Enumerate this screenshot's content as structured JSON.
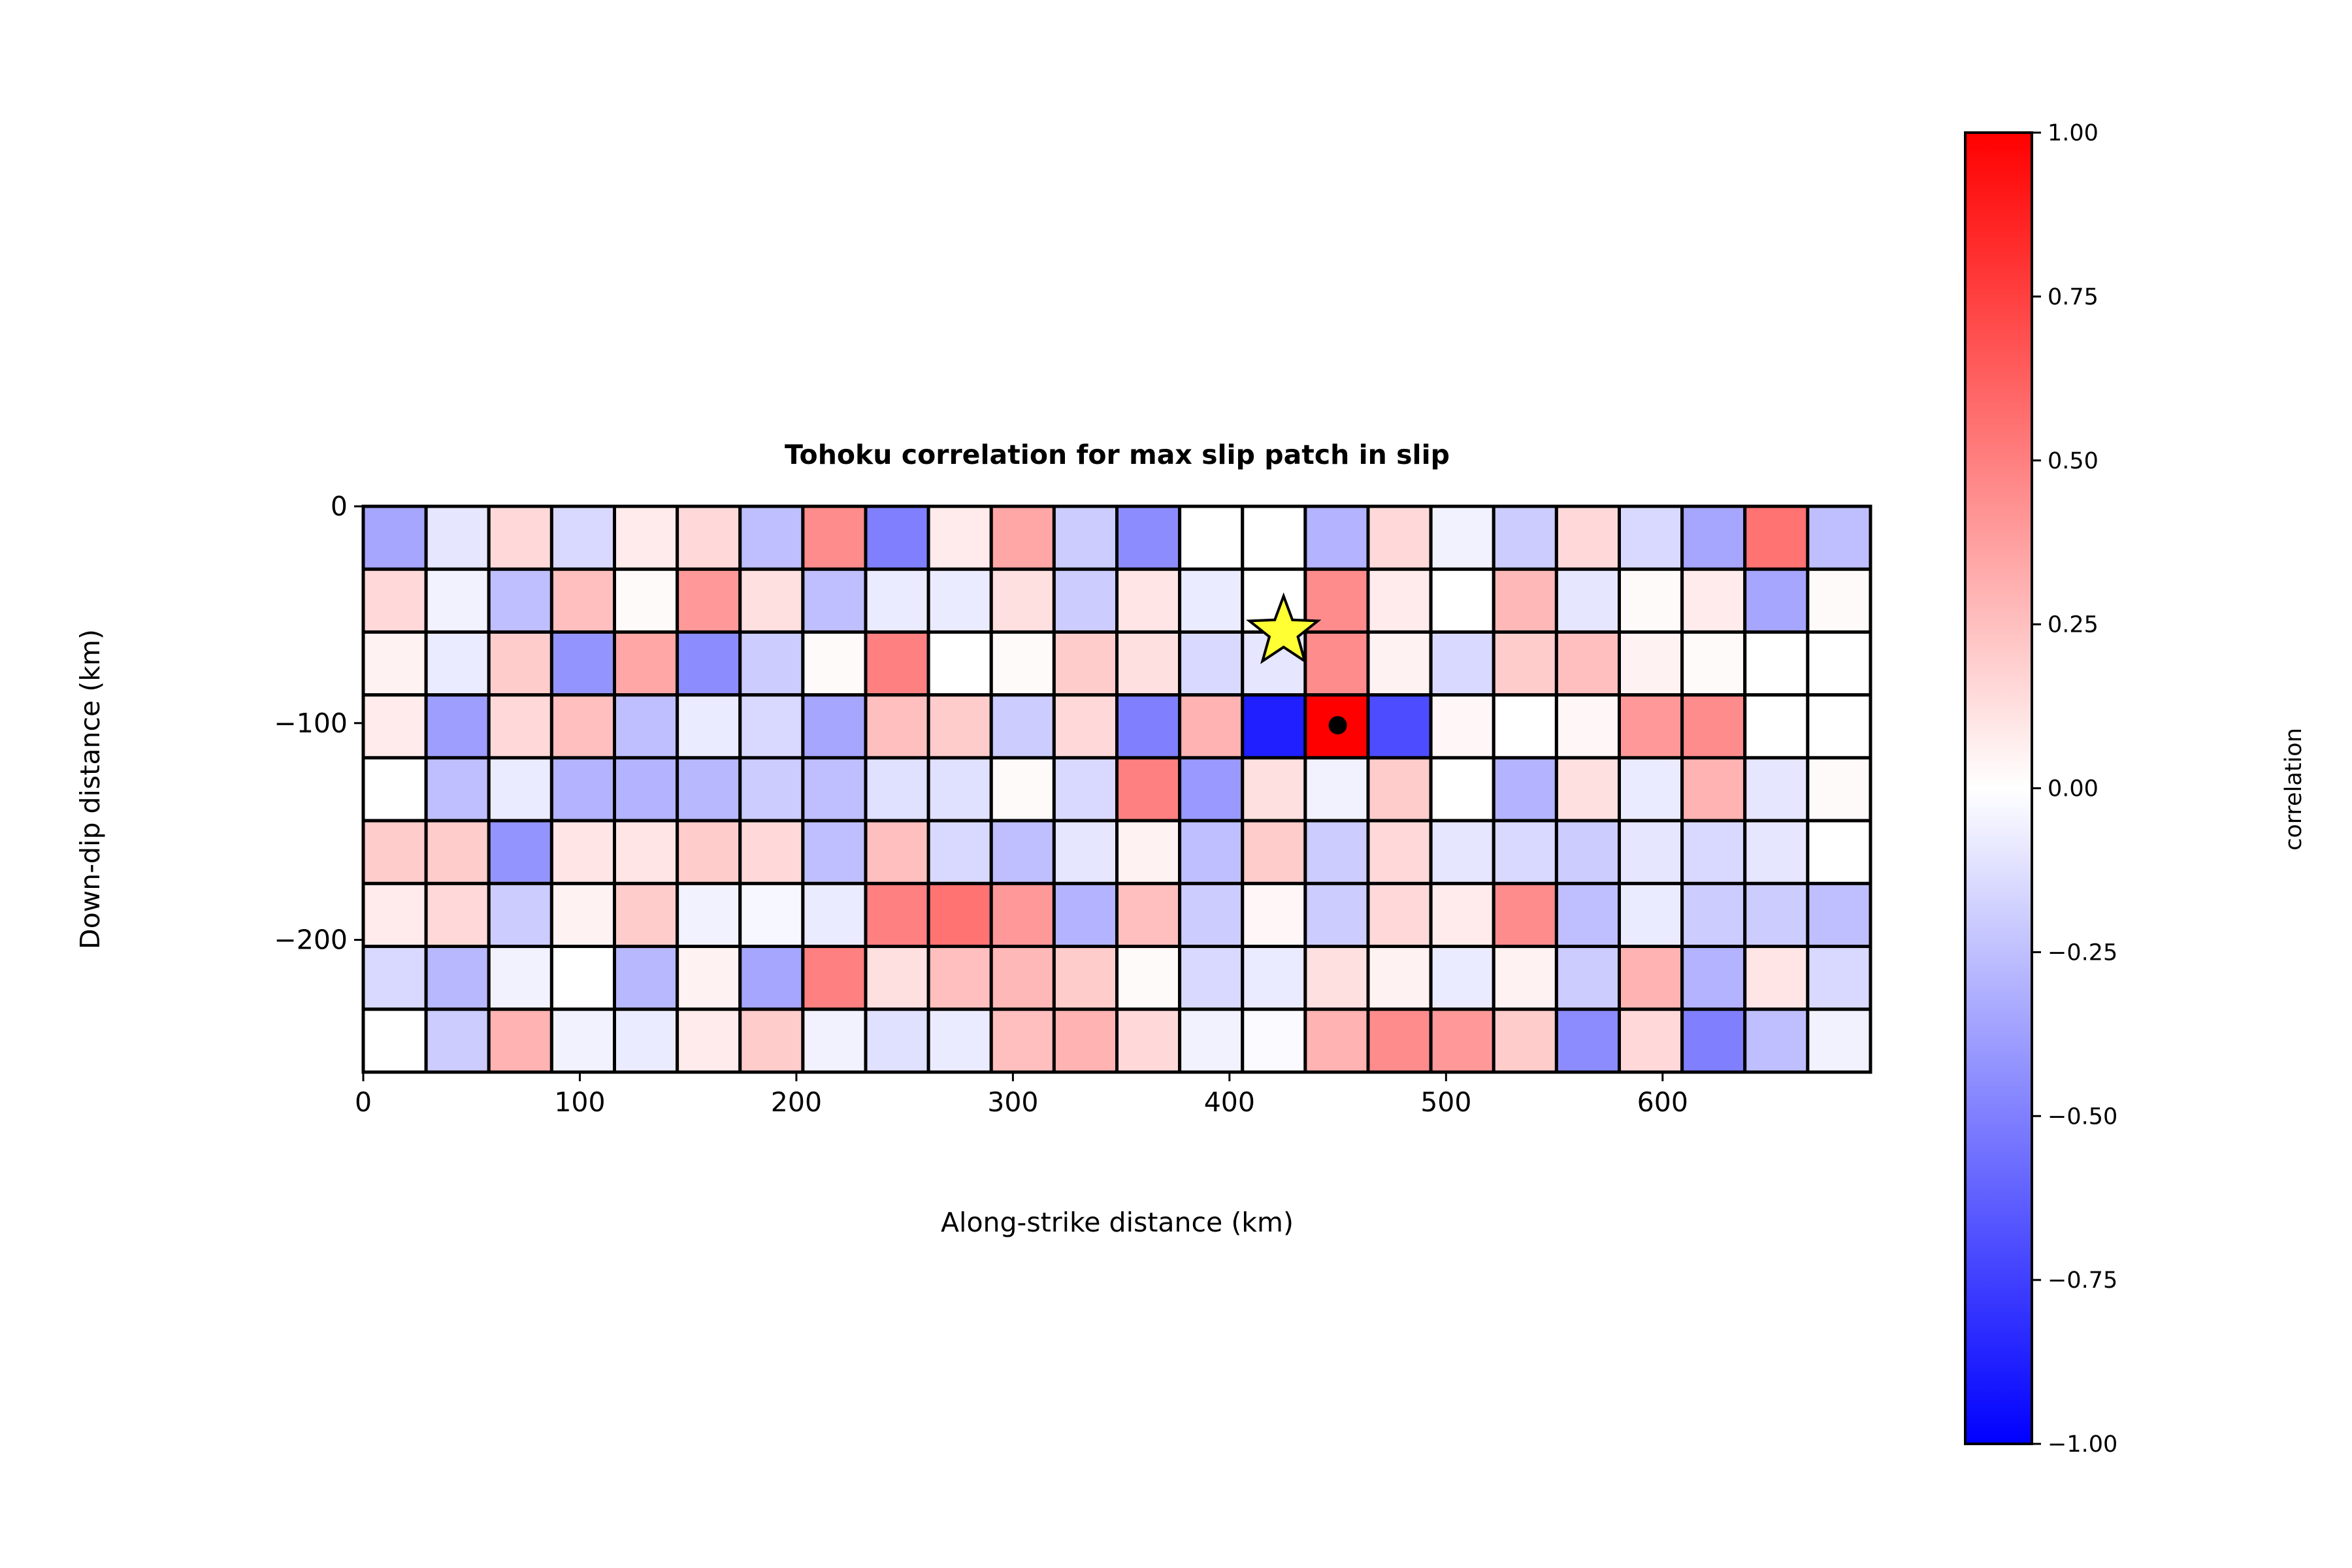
{
  "chart_data": {
    "type": "heatmap",
    "title": "Tohoku correlation for max slip patch in slip",
    "xlabel": "Along-strike distance (km)",
    "ylabel": "Down-dip distance (km)",
    "xlim": [
      0,
      696
    ],
    "ylim": [
      -261,
      0
    ],
    "x_ticks": [
      0,
      100,
      200,
      300,
      400,
      500,
      600
    ],
    "x_tick_labels": [
      "0",
      "100",
      "200",
      "300",
      "400",
      "500",
      "600"
    ],
    "y_ticks": [
      0,
      -100,
      -200
    ],
    "y_tick_labels": [
      "0",
      "−100",
      "−200"
    ],
    "grid": false,
    "n_cols": 24,
    "n_rows": 9,
    "patch_width_km": 29,
    "patch_height_km": 29,
    "values": [
      [
        -0.35,
        -0.1,
        0.15,
        -0.15,
        0.08,
        0.15,
        -0.25,
        0.45,
        -0.5,
        0.08,
        0.35,
        -0.2,
        -0.45,
        0.0,
        0.0,
        -0.3,
        0.15,
        -0.05,
        -0.2,
        0.15,
        -0.15,
        -0.35,
        0.55,
        -0.25
      ],
      [
        0.15,
        -0.05,
        -0.25,
        0.25,
        0.02,
        0.4,
        0.12,
        -0.25,
        -0.08,
        -0.08,
        0.12,
        -0.2,
        0.1,
        -0.08,
        0.0,
        0.45,
        0.08,
        0.0,
        0.28,
        -0.1,
        0.02,
        0.08,
        -0.35,
        0.02
      ],
      [
        0.05,
        -0.08,
        0.2,
        -0.42,
        0.35,
        -0.45,
        -0.2,
        0.02,
        0.5,
        0.0,
        0.02,
        0.2,
        0.12,
        -0.15,
        -0.1,
        0.45,
        0.05,
        -0.15,
        0.2,
        0.25,
        0.05,
        0.02,
        0.0,
        0.0
      ],
      [
        0.08,
        -0.38,
        0.15,
        0.25,
        -0.25,
        -0.08,
        -0.15,
        -0.35,
        0.25,
        0.2,
        -0.2,
        0.15,
        -0.5,
        0.3,
        -0.88,
        1.0,
        -0.7,
        0.03,
        0.0,
        0.03,
        0.4,
        0.45,
        0.0,
        0.0
      ],
      [
        0.0,
        -0.25,
        -0.08,
        -0.3,
        -0.3,
        -0.28,
        -0.2,
        -0.25,
        -0.12,
        -0.12,
        0.02,
        -0.15,
        0.5,
        -0.4,
        0.12,
        -0.05,
        0.2,
        0.0,
        -0.3,
        0.12,
        -0.08,
        0.3,
        -0.1,
        0.02
      ],
      [
        0.2,
        0.2,
        -0.42,
        0.1,
        0.1,
        0.2,
        0.15,
        -0.25,
        0.25,
        -0.15,
        -0.25,
        -0.1,
        0.05,
        -0.25,
        0.2,
        -0.2,
        0.15,
        -0.1,
        -0.15,
        -0.2,
        -0.1,
        -0.15,
        -0.1,
        0.0
      ],
      [
        0.08,
        0.15,
        -0.2,
        0.05,
        0.2,
        -0.05,
        -0.03,
        -0.08,
        0.5,
        0.55,
        0.4,
        -0.3,
        0.25,
        -0.2,
        0.03,
        -0.2,
        0.15,
        0.08,
        0.45,
        -0.25,
        -0.08,
        -0.2,
        -0.2,
        -0.25
      ],
      [
        -0.15,
        -0.28,
        -0.05,
        0.0,
        -0.28,
        0.05,
        -0.35,
        0.5,
        0.12,
        0.25,
        0.28,
        0.2,
        0.02,
        -0.15,
        -0.08,
        0.12,
        0.05,
        -0.08,
        0.05,
        -0.2,
        0.3,
        -0.3,
        0.1,
        -0.15
      ],
      [
        0.0,
        -0.2,
        0.3,
        -0.05,
        -0.08,
        0.08,
        0.2,
        -0.05,
        -0.12,
        -0.08,
        0.25,
        0.3,
        0.15,
        -0.05,
        -0.02,
        0.3,
        0.45,
        0.4,
        0.2,
        -0.45,
        0.15,
        -0.5,
        -0.25,
        -0.05
      ]
    ],
    "colormap": "bwr",
    "vmin": -1.0,
    "vmax": 1.0,
    "colorbar": {
      "label": "correlation",
      "ticks": [
        1.0,
        0.75,
        0.5,
        0.25,
        0.0,
        -0.25,
        -0.5,
        -0.75,
        -1.0
      ],
      "tick_labels": [
        "1.00",
        "0.75",
        "0.50",
        "0.25",
        "0.00",
        "−0.25",
        "−0.50",
        "−0.75",
        "−1.00"
      ],
      "placement": "right"
    },
    "markers": [
      {
        "kind": "hypocenter-star",
        "x": 425,
        "y": -58,
        "color": "#ffff33"
      },
      {
        "kind": "max-slip-patch-dot",
        "x": 450,
        "y": -101,
        "color": "#000000"
      }
    ]
  }
}
